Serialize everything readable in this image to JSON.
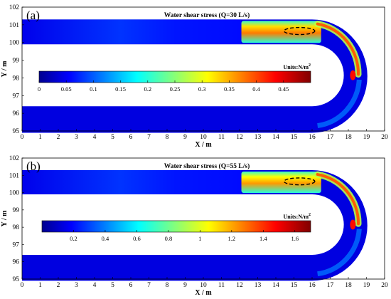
{
  "colors": {
    "background_field": "#0a1e96",
    "channel_low": "#0b2cb0",
    "jet_low": "#00008f",
    "jet_high": "#800000"
  },
  "chart_data": [
    {
      "type": "heatmap",
      "panel_label": "(a)",
      "title": "Water shear stress (Q=30 L/s)",
      "xlabel": "X / m",
      "ylabel": "Y / m",
      "xlim": [
        0,
        20
      ],
      "ylim": [
        95,
        102
      ],
      "xticks": [
        "0",
        "1",
        "2",
        "3",
        "4",
        "5",
        "6",
        "7",
        "8",
        "9",
        "10",
        "11",
        "12",
        "13",
        "14",
        "15",
        "16",
        "17",
        "18",
        "19",
        "20"
      ],
      "yticks": [
        "95",
        "96",
        "97",
        "98",
        "99",
        "100",
        "101",
        "102"
      ],
      "colorbar": {
        "colormap": "jet",
        "units": "Units:N/m",
        "units_superscript": "2",
        "range": [
          0,
          0.5
        ],
        "ticks": [
          "0",
          "0.05",
          "0.1",
          "0.15",
          "0.2",
          "0.25",
          "0.3",
          "0.35",
          "0.4",
          "0.45"
        ],
        "tick_values": [
          0,
          0.05,
          0.1,
          0.15,
          0.2,
          0.25,
          0.3,
          0.35,
          0.4,
          0.45
        ]
      },
      "highlight_ellipse": {
        "cx": 15.3,
        "cy": 100.65,
        "rx": 0.85,
        "ry": 0.2
      },
      "high_stress_zone": {
        "x_start": 12.1,
        "x_end": 16.0,
        "peak_fraction": 0.75
      }
    },
    {
      "type": "heatmap",
      "panel_label": "(b)",
      "title": "Water shear stress (Q=55 L/s)",
      "xlabel": "X / m",
      "ylabel": "Y / m",
      "xlim": [
        0,
        20
      ],
      "ylim": [
        95,
        102
      ],
      "xticks": [
        "0",
        "1",
        "2",
        "3",
        "4",
        "5",
        "6",
        "7",
        "8",
        "9",
        "10",
        "11",
        "12",
        "13",
        "14",
        "15",
        "16",
        "17",
        "18",
        "19",
        "20"
      ],
      "yticks": [
        "95",
        "96",
        "97",
        "98",
        "99",
        "100",
        "101",
        "102"
      ],
      "colorbar": {
        "colormap": "jet",
        "units": "Units:N/m",
        "units_superscript": "2",
        "range": [
          0,
          1.7
        ],
        "ticks": [
          "0.2",
          "0.4",
          "0.6",
          "0.8",
          "1",
          "1.2",
          "1.4",
          "1.6"
        ],
        "tick_values": [
          0.2,
          0.4,
          0.6,
          0.8,
          1.0,
          1.2,
          1.4,
          1.6
        ]
      },
      "highlight_ellipse": {
        "cx": 15.3,
        "cy": 100.65,
        "rx": 0.85,
        "ry": 0.2
      },
      "high_stress_zone": {
        "x_start": 12.1,
        "x_end": 16.0,
        "peak_fraction": 0.72
      }
    }
  ]
}
